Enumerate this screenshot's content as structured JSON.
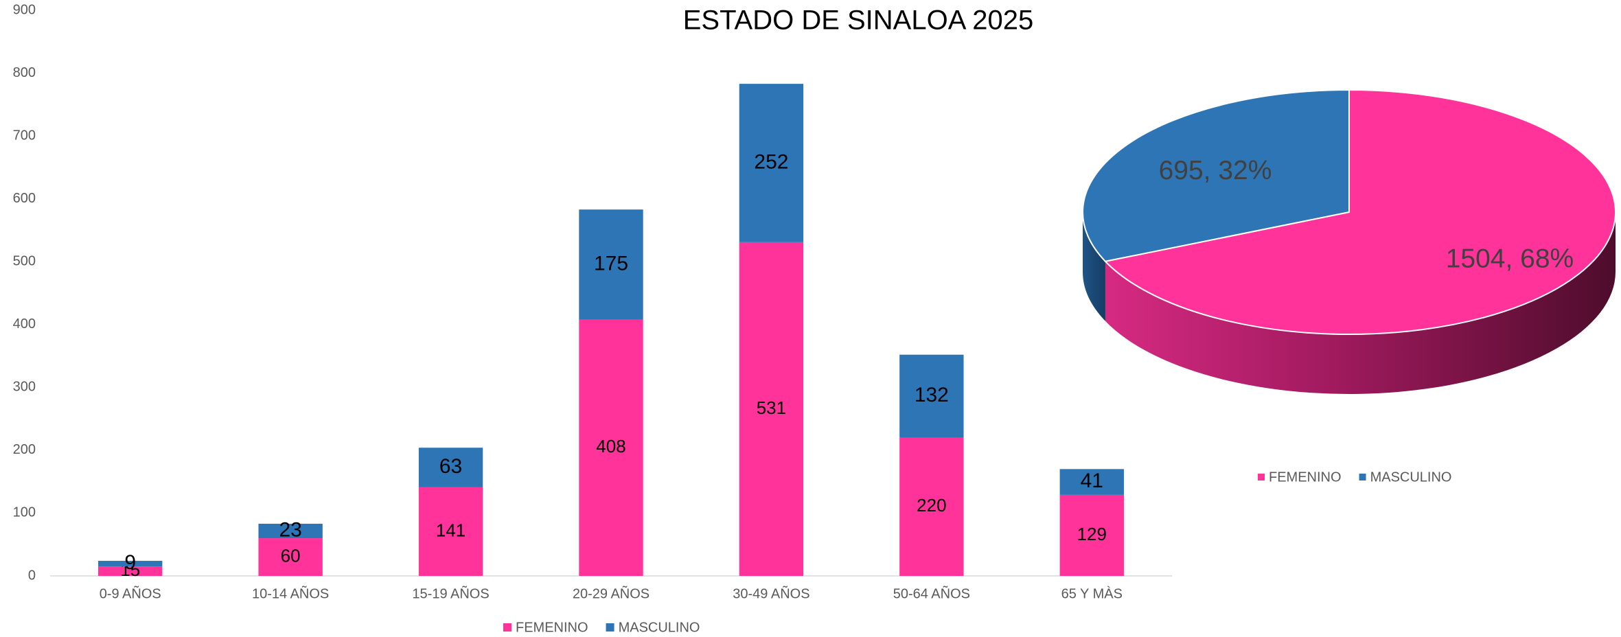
{
  "chart_data": [
    {
      "type": "bar",
      "stacked": true,
      "title": "ESTADO DE SINALOA 2025",
      "categories": [
        "0-9 AÑOS",
        "10-14 AÑOS",
        "15-19 AÑOS",
        "20-29 AÑOS",
        "30-49 AÑOS",
        "50-64 AÑOS",
        "65 Y MÀS"
      ],
      "series": [
        {
          "name": "FEMENINO",
          "color": "#ff3399",
          "values": [
            15,
            60,
            141,
            408,
            531,
            220,
            129
          ]
        },
        {
          "name": "MASCULINO",
          "color": "#2e75b6",
          "values": [
            9,
            23,
            63,
            175,
            252,
            132,
            41
          ]
        }
      ],
      "ylim": [
        0,
        900
      ],
      "yticks": [
        0,
        100,
        200,
        300,
        400,
        500,
        600,
        700,
        800,
        900
      ],
      "grid": false,
      "legend": "bottom"
    },
    {
      "type": "pie",
      "three_d": true,
      "categories": [
        "FEMENINO",
        "MASCULINO"
      ],
      "colors": [
        "#ff3399",
        "#2e75b6"
      ],
      "values": [
        1504,
        695
      ],
      "value_labels": [
        "1504, 68%",
        "695, 32%"
      ],
      "legend": "bottom"
    }
  ]
}
